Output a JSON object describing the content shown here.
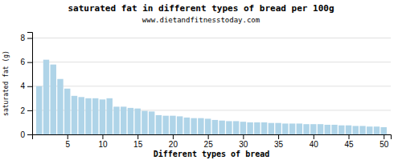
{
  "chart_data": {
    "type": "bar",
    "title": "saturated fat in different types of bread per 100g",
    "subtitle": "www.dietandfitnesstoday.com",
    "xlabel": "Different types of bread",
    "ylabel": "saturated fat (g)",
    "x": [
      1,
      2,
      3,
      4,
      5,
      6,
      7,
      8,
      9,
      10,
      11,
      12,
      13,
      14,
      15,
      16,
      17,
      18,
      19,
      20,
      21,
      22,
      23,
      24,
      25,
      26,
      27,
      28,
      29,
      30,
      31,
      32,
      33,
      34,
      35,
      36,
      37,
      38,
      39,
      40,
      41,
      42,
      43,
      44,
      45,
      46,
      47,
      48,
      49,
      50
    ],
    "values": [
      4.0,
      6.2,
      5.8,
      4.6,
      3.8,
      3.2,
      3.1,
      3.0,
      3.0,
      2.9,
      3.0,
      2.3,
      2.3,
      2.2,
      2.15,
      1.95,
      1.9,
      1.6,
      1.55,
      1.55,
      1.5,
      1.4,
      1.35,
      1.35,
      1.3,
      1.2,
      1.15,
      1.1,
      1.1,
      1.05,
      1.0,
      1.0,
      1.0,
      0.95,
      0.95,
      0.9,
      0.9,
      0.9,
      0.85,
      0.85,
      0.85,
      0.8,
      0.8,
      0.75,
      0.75,
      0.7,
      0.7,
      0.65,
      0.65,
      0.6
    ],
    "color": "#afd4e8",
    "xlim": [
      0,
      51
    ],
    "ylim": [
      0,
      8.5
    ],
    "xticks": [
      5,
      10,
      15,
      20,
      25,
      30,
      35,
      40,
      45,
      50
    ],
    "yticks": [
      0,
      2,
      4,
      6,
      8
    ],
    "grid": true
  }
}
